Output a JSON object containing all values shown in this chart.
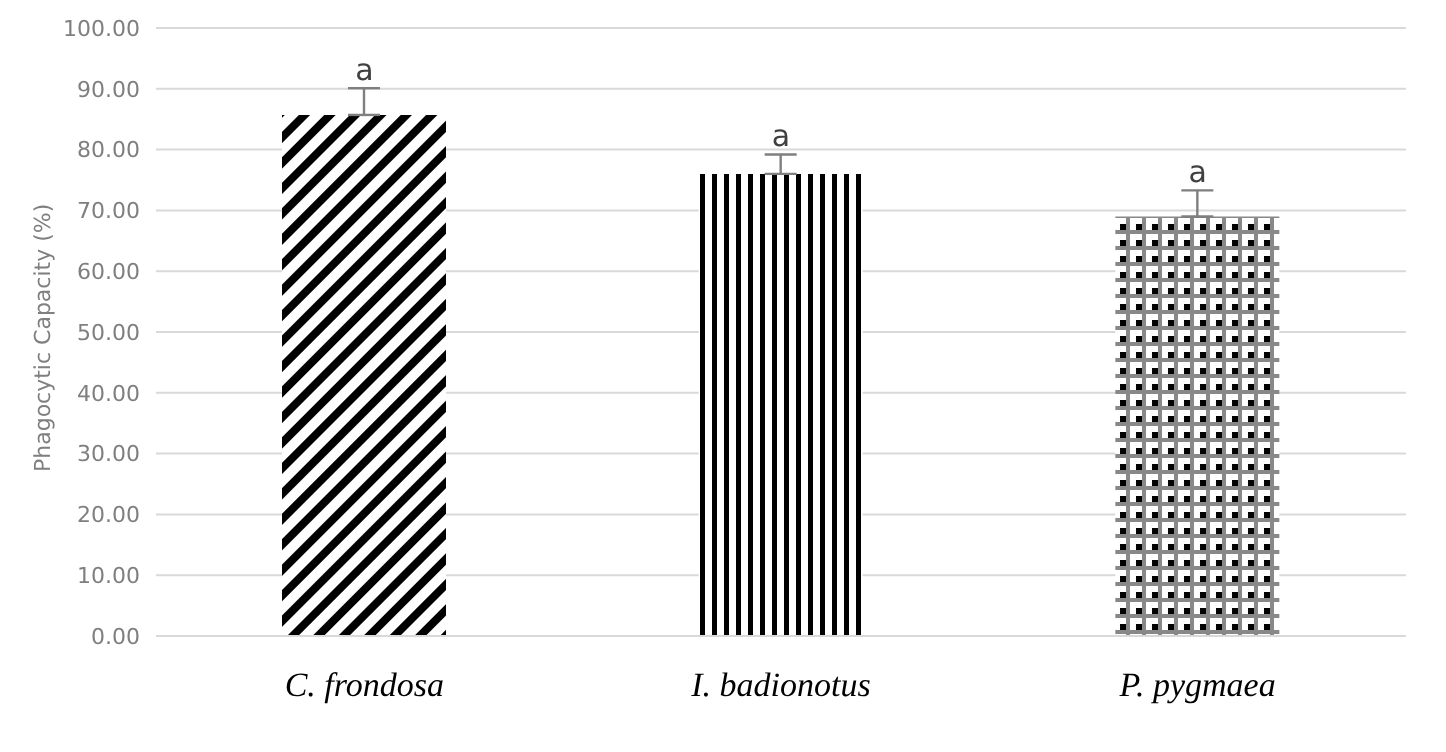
{
  "chart_data": {
    "type": "bar",
    "ylabel": "Phagocytic Capacity (%)",
    "categories": [
      "C. frondosa",
      "I. badionotus",
      "P. pygmaea"
    ],
    "values": [
      85.7,
      76.0,
      69.0
    ],
    "errors": [
      [
        85.7,
        90.1
      ],
      [
        76.0,
        79.2
      ],
      [
        69.0,
        73.3
      ]
    ],
    "colors": [
      "#000000",
      "#000000",
      "#000000"
    ],
    "ylim": [
      0,
      100
    ],
    "yticks": [
      {
        "value": 0,
        "label": "0.00"
      },
      {
        "value": 10,
        "label": "10.00"
      },
      {
        "value": 20,
        "label": "20.00"
      },
      {
        "value": 30,
        "label": "30.00"
      },
      {
        "value": 40,
        "label": "40.00"
      },
      {
        "value": 50,
        "label": "50.00"
      },
      {
        "value": 60,
        "label": "60.00"
      },
      {
        "value": 70,
        "label": "70.00"
      },
      {
        "value": 80,
        "label": "80.00"
      },
      {
        "value": 90,
        "label": "90.00"
      },
      {
        "value": 100,
        "label": "100.00"
      }
    ],
    "grid": "y",
    "annotations": [
      {
        "text": "a",
        "x": "C. frondosa",
        "y": 90.1
      },
      {
        "text": "a",
        "x": "I. badionotus",
        "y": 79.2
      },
      {
        "text": "a",
        "x": "P. pygmaea",
        "y": 73.3
      }
    ]
  }
}
